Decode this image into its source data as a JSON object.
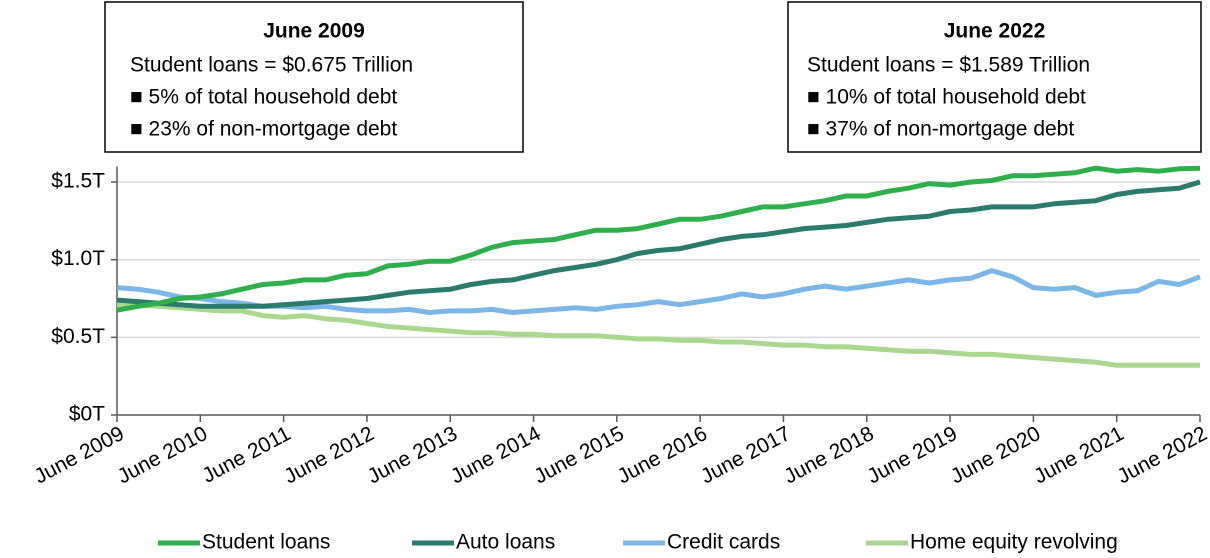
{
  "chart_data": {
    "type": "line",
    "categories": [
      "June 2009",
      null,
      null,
      null,
      "June 2010",
      null,
      null,
      null,
      "June 2011",
      null,
      null,
      null,
      "June 2012",
      null,
      null,
      null,
      "June 2013",
      null,
      null,
      null,
      "June 2014",
      null,
      null,
      null,
      "June 2015",
      null,
      null,
      null,
      "June 2016",
      null,
      null,
      null,
      "June 2017",
      null,
      null,
      null,
      "June 2018",
      null,
      null,
      null,
      "June 2019",
      null,
      null,
      null,
      "June 2020",
      null,
      null,
      null,
      "June 2021",
      null,
      null,
      null,
      "June 2022"
    ],
    "series": [
      {
        "name": "Student loans",
        "color": "#2eaf4b",
        "values": [
          0.675,
          0.7,
          0.72,
          0.75,
          0.76,
          0.78,
          0.81,
          0.84,
          0.85,
          0.87,
          0.87,
          0.9,
          0.91,
          0.96,
          0.97,
          0.99,
          0.99,
          1.03,
          1.08,
          1.11,
          1.12,
          1.13,
          1.16,
          1.19,
          1.19,
          1.2,
          1.23,
          1.26,
          1.26,
          1.28,
          1.31,
          1.34,
          1.34,
          1.36,
          1.38,
          1.41,
          1.41,
          1.44,
          1.46,
          1.49,
          1.48,
          1.5,
          1.51,
          1.54,
          1.54,
          1.55,
          1.56,
          1.59,
          1.57,
          1.58,
          1.57,
          1.585,
          1.589
        ]
      },
      {
        "name": "Auto loans",
        "color": "#2a7a6e",
        "values": [
          0.74,
          0.73,
          0.72,
          0.71,
          0.7,
          0.7,
          0.7,
          0.7,
          0.71,
          0.72,
          0.73,
          0.74,
          0.75,
          0.77,
          0.79,
          0.8,
          0.81,
          0.84,
          0.86,
          0.87,
          0.9,
          0.93,
          0.95,
          0.97,
          1.0,
          1.04,
          1.06,
          1.07,
          1.1,
          1.13,
          1.15,
          1.16,
          1.18,
          1.2,
          1.21,
          1.22,
          1.24,
          1.26,
          1.27,
          1.28,
          1.31,
          1.32,
          1.34,
          1.34,
          1.34,
          1.36,
          1.37,
          1.38,
          1.42,
          1.44,
          1.45,
          1.46,
          1.5
        ]
      },
      {
        "name": "Credit cards",
        "color": "#7ab6e6",
        "values": [
          0.82,
          0.81,
          0.79,
          0.76,
          0.75,
          0.73,
          0.72,
          0.7,
          0.7,
          0.69,
          0.7,
          0.68,
          0.67,
          0.67,
          0.68,
          0.66,
          0.67,
          0.67,
          0.68,
          0.66,
          0.67,
          0.68,
          0.69,
          0.68,
          0.7,
          0.71,
          0.73,
          0.71,
          0.73,
          0.75,
          0.78,
          0.76,
          0.78,
          0.81,
          0.83,
          0.81,
          0.83,
          0.85,
          0.87,
          0.85,
          0.87,
          0.88,
          0.93,
          0.89,
          0.82,
          0.81,
          0.82,
          0.77,
          0.79,
          0.8,
          0.86,
          0.84,
          0.89
        ]
      },
      {
        "name": "Home equity revolving",
        "color": "#a8d88e",
        "values": [
          0.71,
          0.71,
          0.7,
          0.69,
          0.68,
          0.67,
          0.67,
          0.64,
          0.63,
          0.64,
          0.62,
          0.61,
          0.59,
          0.57,
          0.56,
          0.55,
          0.54,
          0.53,
          0.53,
          0.52,
          0.52,
          0.51,
          0.51,
          0.51,
          0.5,
          0.49,
          0.49,
          0.48,
          0.48,
          0.47,
          0.47,
          0.46,
          0.45,
          0.45,
          0.44,
          0.44,
          0.43,
          0.42,
          0.41,
          0.41,
          0.4,
          0.39,
          0.39,
          0.38,
          0.37,
          0.36,
          0.35,
          0.34,
          0.32,
          0.32,
          0.32,
          0.32,
          0.32
        ]
      }
    ],
    "ylim": [
      0,
      1.6
    ],
    "yticks": [
      {
        "value": 0,
        "label": "$0T"
      },
      {
        "value": 0.5,
        "label": "$0.5T"
      },
      {
        "value": 1.0,
        "label": "$1.0T"
      },
      {
        "value": 1.5,
        "label": "$1.5T"
      }
    ],
    "grid": true,
    "legend": "bottom",
    "annotations": [
      {
        "title": "June 2009",
        "lines": [
          "Student loans = $0.675 Trillion",
          "■ 5% of total household debt",
          "■ 23% of non-mortgage debt"
        ]
      },
      {
        "title": "June 2022",
        "lines": [
          "Student loans = $1.589 Trillion",
          "■ 10% of total household debt",
          "■ 37% of non-mortgage debt"
        ]
      }
    ]
  }
}
